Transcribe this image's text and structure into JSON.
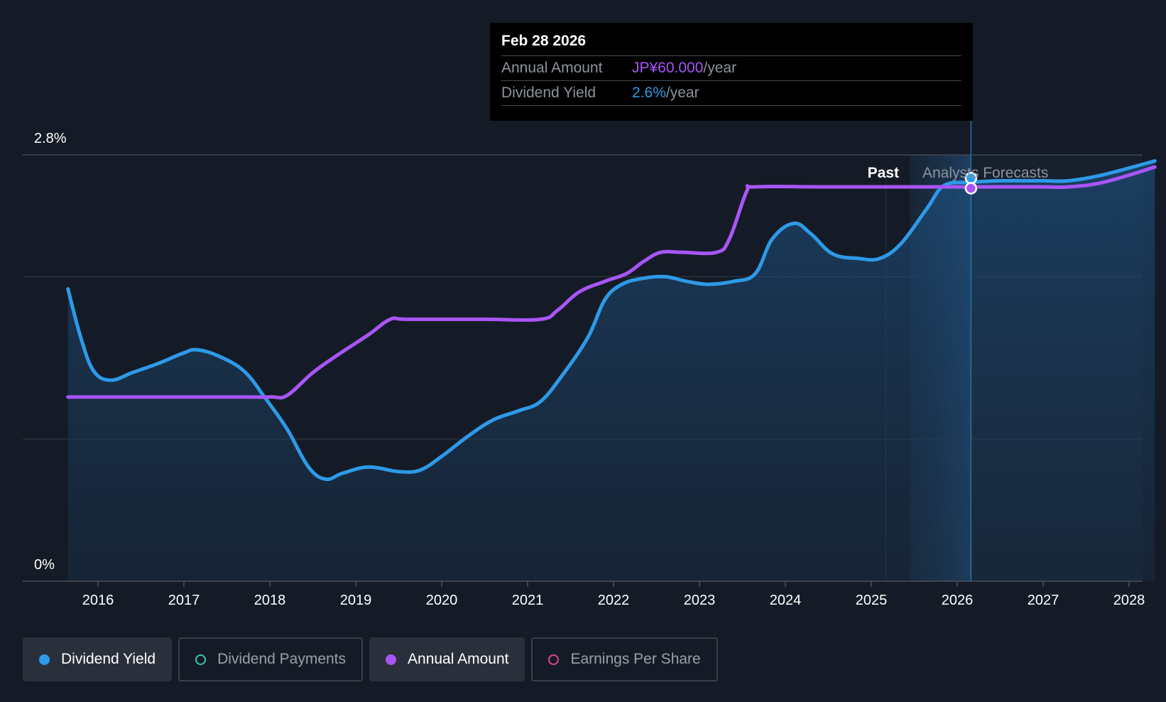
{
  "tooltip": {
    "date": "Feb 28 2026",
    "rows": [
      {
        "key": "Annual Amount",
        "value": "JP¥60.000",
        "suffix": "/year"
      },
      {
        "key": "Dividend Yield",
        "value": "2.6%",
        "suffix": "/year"
      }
    ]
  },
  "regions": {
    "past": "Past",
    "forecast": "Analysts Forecasts"
  },
  "legend": [
    {
      "label": "Dividend Yield",
      "color": "#2d9ae8",
      "active": true
    },
    {
      "label": "Dividend Payments",
      "color": "#3cc6b0",
      "active": false
    },
    {
      "label": "Annual Amount",
      "color": "#a855f7",
      "active": true
    },
    {
      "label": "Earnings Per Share",
      "color": "#d94a8c",
      "active": false
    }
  ],
  "chart_data": {
    "type": "line",
    "y_axis": {
      "labels": [
        "2.8%",
        "0%"
      ],
      "range": [
        0,
        2.8
      ],
      "unit": "%"
    },
    "x_axis": {
      "ticks": [
        "2016",
        "2017",
        "2018",
        "2019",
        "2020",
        "2021",
        "2022",
        "2023",
        "2024",
        "2025",
        "2026",
        "2027",
        "2028"
      ],
      "range": [
        2015.5,
        2028.3
      ]
    },
    "past_end": 2025.17,
    "forecast_start": 2025.45,
    "cursor_x": 2026.16,
    "grid": true,
    "series": [
      {
        "name": "Dividend Yield",
        "color": "#2d9ae8",
        "filled": true,
        "points": [
          [
            2015.65,
            1.92
          ],
          [
            2015.8,
            1.6
          ],
          [
            2015.95,
            1.38
          ],
          [
            2016.15,
            1.32
          ],
          [
            2016.4,
            1.37
          ],
          [
            2016.7,
            1.43
          ],
          [
            2017.0,
            1.5
          ],
          [
            2017.15,
            1.52
          ],
          [
            2017.4,
            1.48
          ],
          [
            2017.7,
            1.38
          ],
          [
            2017.95,
            1.2
          ],
          [
            2018.2,
            1.0
          ],
          [
            2018.45,
            0.75
          ],
          [
            2018.65,
            0.67
          ],
          [
            2018.85,
            0.71
          ],
          [
            2019.15,
            0.75
          ],
          [
            2019.5,
            0.72
          ],
          [
            2019.75,
            0.73
          ],
          [
            2020.0,
            0.82
          ],
          [
            2020.3,
            0.95
          ],
          [
            2020.6,
            1.06
          ],
          [
            2020.9,
            1.12
          ],
          [
            2021.15,
            1.18
          ],
          [
            2021.4,
            1.35
          ],
          [
            2021.7,
            1.6
          ],
          [
            2021.9,
            1.85
          ],
          [
            2022.1,
            1.95
          ],
          [
            2022.35,
            1.99
          ],
          [
            2022.6,
            2.0
          ],
          [
            2022.85,
            1.97
          ],
          [
            2023.1,
            1.95
          ],
          [
            2023.4,
            1.97
          ],
          [
            2023.65,
            2.02
          ],
          [
            2023.85,
            2.25
          ],
          [
            2024.1,
            2.35
          ],
          [
            2024.3,
            2.28
          ],
          [
            2024.55,
            2.15
          ],
          [
            2024.85,
            2.12
          ],
          [
            2025.1,
            2.12
          ],
          [
            2025.35,
            2.22
          ],
          [
            2025.65,
            2.45
          ],
          [
            2025.85,
            2.6
          ],
          [
            2026.16,
            2.62
          ],
          [
            2026.5,
            2.63
          ],
          [
            2027.0,
            2.63
          ],
          [
            2027.3,
            2.63
          ],
          [
            2027.7,
            2.67
          ],
          [
            2028.3,
            2.76
          ]
        ]
      },
      {
        "name": "Annual Amount",
        "color": "#a855f7",
        "filled": false,
        "points": [
          [
            2015.65,
            1.21
          ],
          [
            2016.5,
            1.21
          ],
          [
            2017.5,
            1.21
          ],
          [
            2018.0,
            1.21
          ],
          [
            2018.2,
            1.22
          ],
          [
            2018.5,
            1.37
          ],
          [
            2018.8,
            1.49
          ],
          [
            2019.15,
            1.62
          ],
          [
            2019.4,
            1.72
          ],
          [
            2019.6,
            1.72
          ],
          [
            2020.5,
            1.72
          ],
          [
            2021.15,
            1.72
          ],
          [
            2021.35,
            1.78
          ],
          [
            2021.6,
            1.9
          ],
          [
            2021.9,
            1.97
          ],
          [
            2022.15,
            2.02
          ],
          [
            2022.35,
            2.1
          ],
          [
            2022.55,
            2.16
          ],
          [
            2022.8,
            2.16
          ],
          [
            2023.2,
            2.16
          ],
          [
            2023.35,
            2.25
          ],
          [
            2023.55,
            2.56
          ],
          [
            2023.65,
            2.59
          ],
          [
            2024.5,
            2.59
          ],
          [
            2025.5,
            2.59
          ],
          [
            2026.16,
            2.59
          ],
          [
            2026.5,
            2.59
          ],
          [
            2027.0,
            2.59
          ],
          [
            2027.3,
            2.59
          ],
          [
            2027.7,
            2.62
          ],
          [
            2028.3,
            2.72
          ]
        ]
      }
    ]
  }
}
